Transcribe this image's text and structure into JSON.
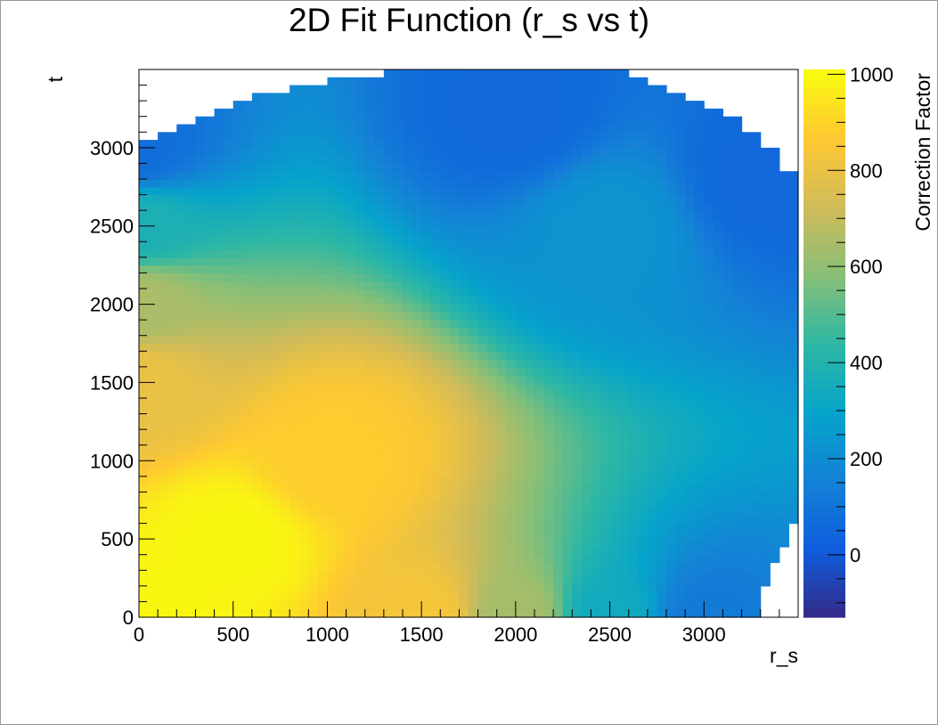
{
  "chart_data": {
    "type": "heatmap",
    "title": "2D Fit Function (r_s vs t)",
    "xlabel": "r_s",
    "ylabel": "t",
    "zlabel": "Correction Factor",
    "xlim": [
      0,
      3500
    ],
    "ylim": [
      0,
      3500
    ],
    "zlim": [
      -130,
      1010
    ],
    "x_ticks": [
      0,
      500,
      1000,
      1500,
      2000,
      2500,
      3000
    ],
    "y_ticks": [
      0,
      500,
      1000,
      1500,
      2000,
      2500,
      3000
    ],
    "z_ticks": [
      0,
      200,
      400,
      600,
      800,
      1000
    ],
    "colormap": "parula",
    "colormap_stops": [
      "#352a87",
      "#0f5cdd",
      "#1481d6",
      "#06a4ca",
      "#2eb7a4",
      "#87bf77",
      "#d1bb59",
      "#fec832",
      "#f9fb0e"
    ],
    "grid": false,
    "samples": [
      {
        "r_s": 0,
        "t": 0,
        "value": 1000
      },
      {
        "r_s": 500,
        "t": 500,
        "value": 1000
      },
      {
        "r_s": 1000,
        "t": 1000,
        "value": 880
      },
      {
        "r_s": 0,
        "t": 1500,
        "value": 800
      },
      {
        "r_s": 0,
        "t": 2000,
        "value": 650
      },
      {
        "r_s": 0,
        "t": 2500,
        "value": 380
      },
      {
        "r_s": 0,
        "t": 3000,
        "value": 80
      },
      {
        "r_s": 1500,
        "t": 0,
        "value": 840
      },
      {
        "r_s": 2000,
        "t": 0,
        "value": 640
      },
      {
        "r_s": 2500,
        "t": 0,
        "value": 340
      },
      {
        "r_s": 3000,
        "t": 0,
        "value": 130
      },
      {
        "r_s": 2500,
        "t": 2500,
        "value": 230
      },
      {
        "r_s": 2000,
        "t": 3200,
        "value": 60
      },
      {
        "r_s": 3300,
        "t": 2800,
        "value": 60
      }
    ],
    "domain_edge": {
      "r_s": [
        0,
        100,
        200,
        300,
        400,
        500,
        600,
        700,
        800,
        900,
        1000,
        1100,
        1200,
        1300,
        1400,
        1500,
        1600,
        1700,
        1800,
        1900,
        2000,
        2100,
        2200,
        2300,
        2400,
        2500,
        2600,
        2700,
        2800,
        2900,
        3000,
        3100,
        3200,
        3300,
        3400
      ],
      "t_max": [
        3050,
        3110,
        3160,
        3220,
        3250,
        3300,
        3350,
        3360,
        3380,
        3400,
        3440,
        3450,
        3460,
        3480,
        3500,
        3500,
        3500,
        3500,
        3500,
        3500,
        3500,
        3500,
        3500,
        3500,
        3500,
        3480,
        3440,
        3400,
        3340,
        3300,
        3230,
        3180,
        3110,
        3000,
        2840
      ],
      "t_min_right": [
        [
          3250,
          0
        ],
        [
          3300,
          200
        ],
        [
          3350,
          350
        ],
        [
          3400,
          450
        ],
        [
          3450,
          600
        ]
      ]
    }
  }
}
